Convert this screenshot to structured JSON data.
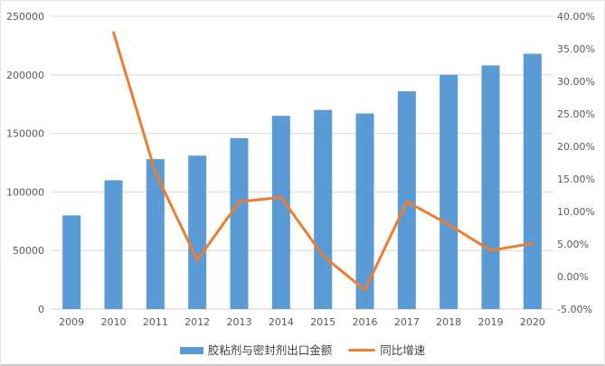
{
  "chart_data": {
    "type": "bar",
    "combo": "bar+line",
    "title": "",
    "categories": [
      "2009",
      "2010",
      "2011",
      "2012",
      "2013",
      "2014",
      "2015",
      "2016",
      "2017",
      "2018",
      "2019",
      "2020"
    ],
    "series": [
      {
        "name": "胶粘剂与密封剂出口金额",
        "type": "bar",
        "axis": "left",
        "color": "#5B9BD5",
        "values": [
          80000,
          110000,
          128000,
          131000,
          146000,
          165000,
          170000,
          167000,
          186000,
          200000,
          208000,
          218000
        ]
      },
      {
        "name": "同比增速",
        "type": "line",
        "axis": "right",
        "color": "#ED7D31",
        "values_percent": [
          null,
          37.5,
          16.0,
          2.5,
          11.5,
          12.2,
          3.2,
          -2.1,
          11.5,
          8.0,
          4.0,
          5.1
        ]
      }
    ],
    "left_axis": {
      "min": 0,
      "max": 250000,
      "tick_values": [
        0,
        50000,
        100000,
        150000,
        200000,
        250000
      ],
      "tick_labels": [
        "0",
        "50000",
        "100000",
        "150000",
        "200000",
        "250000"
      ]
    },
    "right_axis": {
      "min": -5,
      "max": 40,
      "tick_values": [
        -5,
        0,
        5,
        10,
        15,
        20,
        25,
        30,
        35,
        40
      ],
      "tick_labels": [
        "-5.00%",
        "0.00%",
        "5.00%",
        "10.00%",
        "15.00%",
        "20.00%",
        "25.00%",
        "30.00%",
        "35.00%",
        "40.00%"
      ]
    },
    "grid": true,
    "legend_position": "bottom",
    "colors": {
      "bar": "#5B9BD5",
      "line": "#ED7D31",
      "gridline": "#D9D9D9",
      "axis_line": "#D1D1D1",
      "axis_text": "#595959",
      "background": "#FFFFFF",
      "card_border": "#E6E6E6"
    }
  },
  "legend": {
    "items": [
      {
        "label": "胶粘剂与密封剂出口金额",
        "type": "bar",
        "color": "#5B9BD5"
      },
      {
        "label": "同比增速",
        "type": "line",
        "color": "#ED7D31"
      }
    ]
  }
}
